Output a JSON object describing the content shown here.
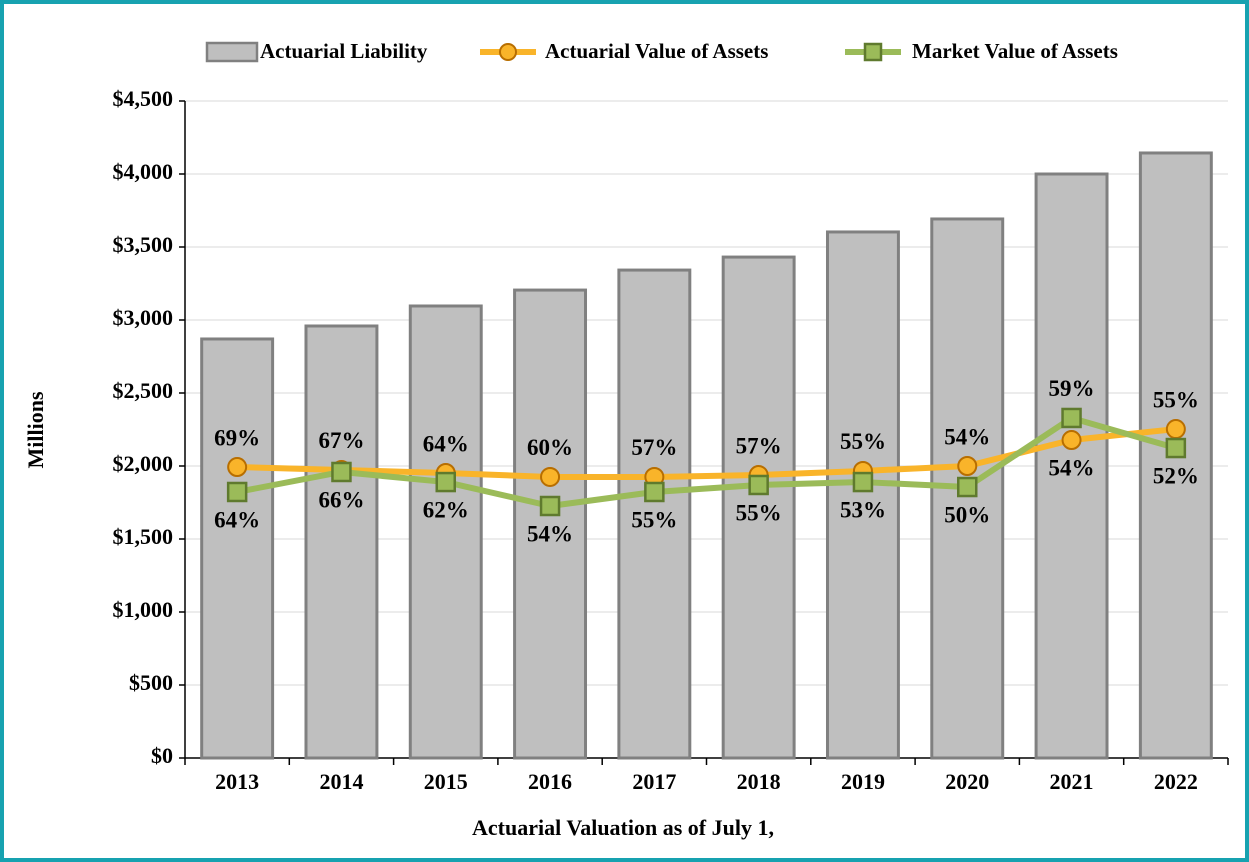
{
  "chart_data": {
    "type": "bar_line",
    "x_label": "Actuarial Valuation as of July 1,",
    "y_label": "Millions",
    "categories": [
      "2013",
      "2014",
      "2015",
      "2016",
      "2017",
      "2018",
      "2019",
      "2020",
      "2021",
      "2022"
    ],
    "series": [
      {
        "name": "Actuarial Liability",
        "type": "bar",
        "color": "#bfbfbf",
        "values": [
          2870,
          2959,
          3096,
          3205,
          3342,
          3431,
          3603,
          3692,
          4000,
          4144
        ]
      },
      {
        "name": "Actuarial Value of Assets",
        "type": "line",
        "color": "#f9b42a",
        "values": [
          1993,
          1973,
          1952,
          1925,
          1925,
          1938,
          1966,
          2000,
          2178,
          2253
        ],
        "annotations": [
          "69%",
          "67%",
          "64%",
          "60%",
          "57%",
          "57%",
          "55%",
          "54%",
          "54%",
          "55%"
        ]
      },
      {
        "name": "Market Value of Assets",
        "type": "line",
        "color": "#9bbb59",
        "values": [
          1822,
          1959,
          1890,
          1726,
          1822,
          1870,
          1890,
          1856,
          2329,
          2123
        ],
        "annotations": [
          "64%",
          "66%",
          "62%",
          "54%",
          "55%",
          "55%",
          "53%",
          "50%",
          "59%",
          "52%"
        ]
      }
    ],
    "ylim": [
      0,
      4500
    ],
    "yticks": [
      {
        "value": 0,
        "label": "$0"
      },
      {
        "value": 500,
        "label": "$500"
      },
      {
        "value": 1000,
        "label": "$1,000"
      },
      {
        "value": 1500,
        "label": "$1,500"
      },
      {
        "value": 2000,
        "label": "$2,000"
      },
      {
        "value": 2500,
        "label": "$2,500"
      },
      {
        "value": 3000,
        "label": "$3,000"
      },
      {
        "value": 3500,
        "label": "$3,500"
      },
      {
        "value": 4000,
        "label": "$4,000"
      },
      {
        "value": 4500,
        "label": "$4,500"
      }
    ],
    "grid": true,
    "legend": "top"
  }
}
